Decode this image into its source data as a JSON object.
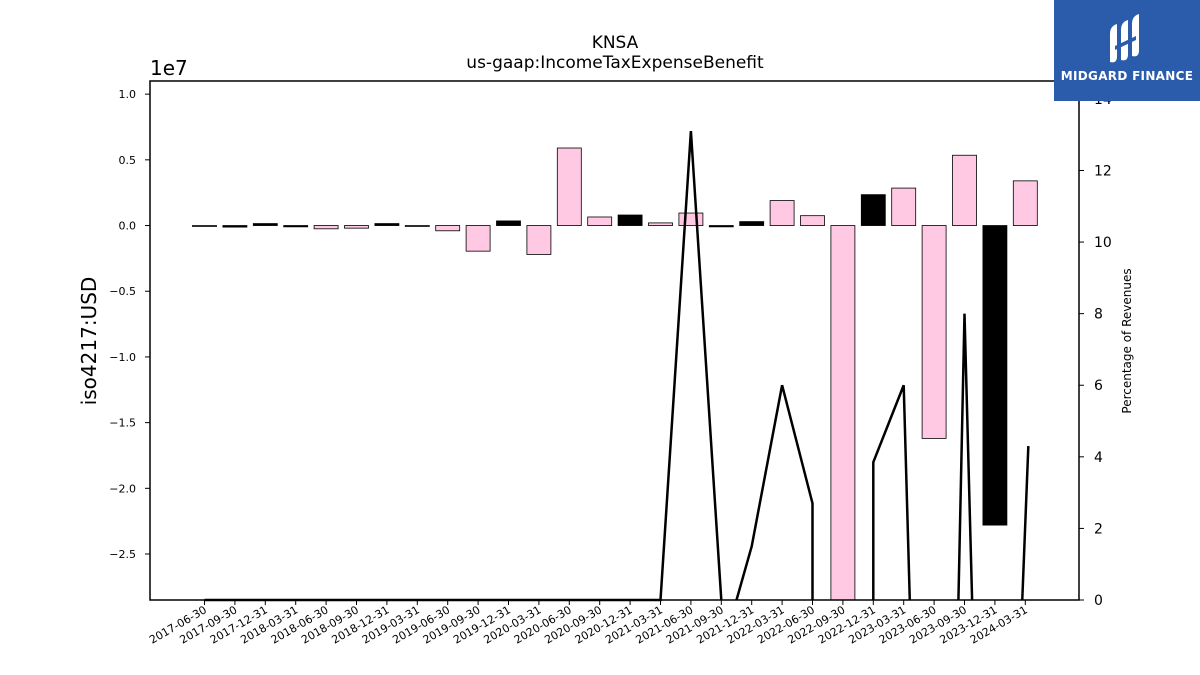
{
  "chart_data": {
    "type": "bar",
    "title": "KNSA",
    "subtitle": "us-gaap:IncomeTaxExpenseBenefit",
    "ylabel": "iso4217:USD",
    "y2label": "Percentage of Revenues",
    "y_offset_label": "1e7",
    "ylim": [
      -28500000,
      11000000
    ],
    "y2lim": [
      0,
      14.5
    ],
    "yticks": [
      "1.0",
      "0.5",
      "0.0",
      "−0.5",
      "−1.0",
      "−1.5",
      "−2.0",
      "−2.5"
    ],
    "y2ticks": [
      "0",
      "2",
      "4",
      "6",
      "8",
      "10",
      "12",
      "14"
    ],
    "grid": false,
    "categories": [
      "2017-06-30",
      "2017-09-30",
      "2017-12-31",
      "2018-03-31",
      "2018-06-30",
      "2018-09-30",
      "2018-12-31",
      "2019-03-31",
      "2019-06-30",
      "2019-09-30",
      "2019-12-31",
      "2020-03-31",
      "2020-06-30",
      "2020-09-30",
      "2020-12-31",
      "2021-03-31",
      "2021-06-30",
      "2021-09-30",
      "2021-12-31",
      "2022-03-31",
      "2022-06-30",
      "2022-09-30",
      "2022-12-31",
      "2023-03-31",
      "2023-06-30",
      "2023-09-30",
      "2023-12-31",
      "2024-03-31"
    ],
    "series": [
      {
        "values": [
          -30000,
          -120000,
          150000,
          -100000,
          -250000,
          -200000,
          150000,
          -30000,
          -400000,
          -1950000,
          350000,
          -2200000,
          5900000,
          650000,
          800000,
          200000,
          950000,
          -100000,
          300000,
          1900000,
          750000,
          -28500000,
          2350000,
          2850000,
          -16200000,
          5350000,
          -22800000,
          3400000
        ],
        "colors": [
          "#ffc8e3",
          "#000000",
          "#000000",
          "#000000",
          "#ffc8e3",
          "#ffc8e3",
          "#000000",
          "#ffc8e3",
          "#ffc8e3",
          "#ffc8e3",
          "#000000",
          "#ffc8e3",
          "#ffc8e3",
          "#ffc8e3",
          "#000000",
          "#ffc8e3",
          "#ffc8e3",
          "#000000",
          "#000000",
          "#ffc8e3",
          "#ffc8e3",
          "#ffc8e3",
          "#000000",
          "#ffc8e3",
          "#ffc8e3",
          "#ffc8e3",
          "#000000",
          "#ffc8e3"
        ]
      }
    ],
    "line_segments": [
      [
        [
          0,
          0
        ],
        [
          15,
          0
        ],
        [
          16,
          13.1
        ],
        [
          17,
          0
        ]
      ],
      [
        [
          17.5,
          0
        ],
        [
          18,
          1.5
        ],
        [
          19,
          6.0
        ],
        [
          20,
          2.7
        ],
        [
          20,
          0
        ]
      ],
      [
        [
          22,
          0
        ],
        [
          22,
          3.85
        ],
        [
          23,
          6.0
        ],
        [
          23.2,
          0
        ]
      ],
      [
        [
          24.8,
          0
        ],
        [
          25,
          8.0
        ],
        [
          25.25,
          0
        ]
      ],
      [
        [
          26.9,
          0
        ],
        [
          27.1,
          4.3
        ]
      ]
    ]
  },
  "logo": {
    "text": "MIDGARD FINANCE"
  }
}
